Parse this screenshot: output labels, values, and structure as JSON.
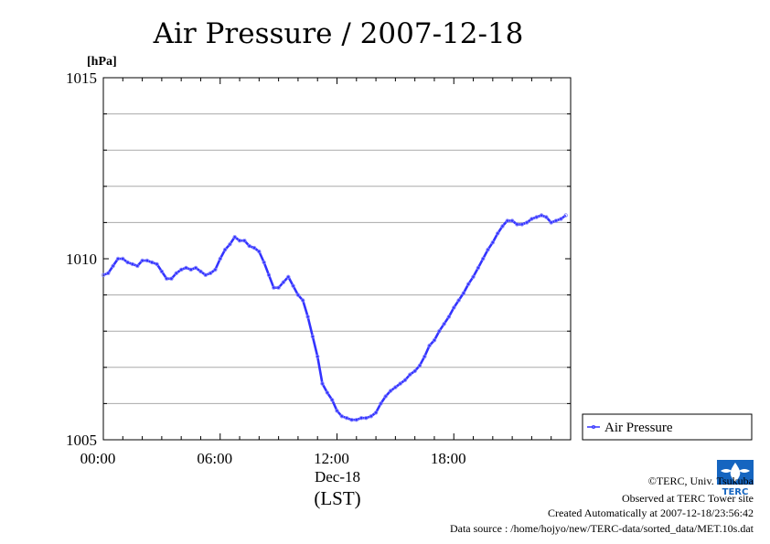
{
  "chart_data": {
    "type": "line",
    "title": "Air Pressure / 2007-12-18",
    "ylabel": "[hPa]",
    "xlabel_date": "Dec-18",
    "xlabel_tz": "(LST)",
    "xlim": [
      0,
      24
    ],
    "ylim": [
      1005,
      1015
    ],
    "x_ticks": [
      0,
      6,
      12,
      18
    ],
    "x_tick_labels": [
      "00:00",
      "06:00",
      "12:00",
      "18:00"
    ],
    "y_ticks": [
      1005,
      1010,
      1015
    ],
    "y_tick_labels": [
      "1005",
      "1010",
      "1015"
    ],
    "grid_y": [
      1006,
      1007,
      1008,
      1009,
      1011,
      1012,
      1013,
      1014
    ],
    "grid": true,
    "legend_position": "right",
    "series": [
      {
        "name": "Air Pressure",
        "color": "#3333ff",
        "x": [
          0,
          0.25,
          0.5,
          0.75,
          1.0,
          1.25,
          1.5,
          1.75,
          2.0,
          2.25,
          2.5,
          2.75,
          3.0,
          3.25,
          3.5,
          3.75,
          4.0,
          4.25,
          4.5,
          4.75,
          5.0,
          5.25,
          5.5,
          5.75,
          6.0,
          6.25,
          6.5,
          6.75,
          7.0,
          7.25,
          7.5,
          7.75,
          8.0,
          8.25,
          8.5,
          8.75,
          9.0,
          9.25,
          9.5,
          9.75,
          10.0,
          10.25,
          10.5,
          10.75,
          11.0,
          11.25,
          11.5,
          11.75,
          12.0,
          12.25,
          12.5,
          12.75,
          13.0,
          13.25,
          13.5,
          13.75,
          14.0,
          14.25,
          14.5,
          14.75,
          15.0,
          15.25,
          15.5,
          15.75,
          16.0,
          16.25,
          16.5,
          16.75,
          17.0,
          17.25,
          17.5,
          17.75,
          18.0,
          18.25,
          18.5,
          18.75,
          19.0,
          19.25,
          19.5,
          19.75,
          20.0,
          20.25,
          20.5,
          20.75,
          21.0,
          21.25,
          21.5,
          21.75,
          22.0,
          22.25,
          22.5,
          22.75,
          23.0,
          23.25,
          23.5,
          23.75
        ],
        "values": [
          1009.55,
          1009.6,
          1009.8,
          1010.0,
          1010.0,
          1009.9,
          1009.85,
          1009.8,
          1009.95,
          1009.95,
          1009.9,
          1009.85,
          1009.65,
          1009.45,
          1009.45,
          1009.6,
          1009.7,
          1009.75,
          1009.7,
          1009.75,
          1009.65,
          1009.55,
          1009.6,
          1009.7,
          1010.0,
          1010.25,
          1010.4,
          1010.6,
          1010.5,
          1010.5,
          1010.35,
          1010.3,
          1010.2,
          1009.9,
          1009.55,
          1009.2,
          1009.2,
          1009.35,
          1009.5,
          1009.25,
          1009.0,
          1008.85,
          1008.4,
          1007.85,
          1007.3,
          1006.55,
          1006.3,
          1006.1,
          1005.8,
          1005.65,
          1005.6,
          1005.55,
          1005.55,
          1005.6,
          1005.6,
          1005.65,
          1005.75,
          1006.0,
          1006.2,
          1006.35,
          1006.45,
          1006.55,
          1006.65,
          1006.8,
          1006.9,
          1007.05,
          1007.3,
          1007.6,
          1007.75,
          1008.0,
          1008.2,
          1008.4,
          1008.65,
          1008.85,
          1009.05,
          1009.3,
          1009.5,
          1009.75,
          1010.0,
          1010.25,
          1010.45,
          1010.7,
          1010.9,
          1011.05,
          1011.05,
          1010.95,
          1010.95,
          1011.0,
          1011.1,
          1011.15,
          1011.2,
          1011.15,
          1011.0,
          1011.05,
          1011.1,
          1011.2
        ]
      }
    ]
  },
  "credits": {
    "copyright": "©TERC, Univ. Tsukuba",
    "observed": "Observed at TERC Tower site",
    "created": "Created Automatically at 2007-12-18/23:56:42",
    "source": "Data source : /home/hojyo/new/TERC-data/sorted_data/MET.10s.dat"
  },
  "logo": {
    "text": "TERC",
    "color": "#1565c0"
  }
}
